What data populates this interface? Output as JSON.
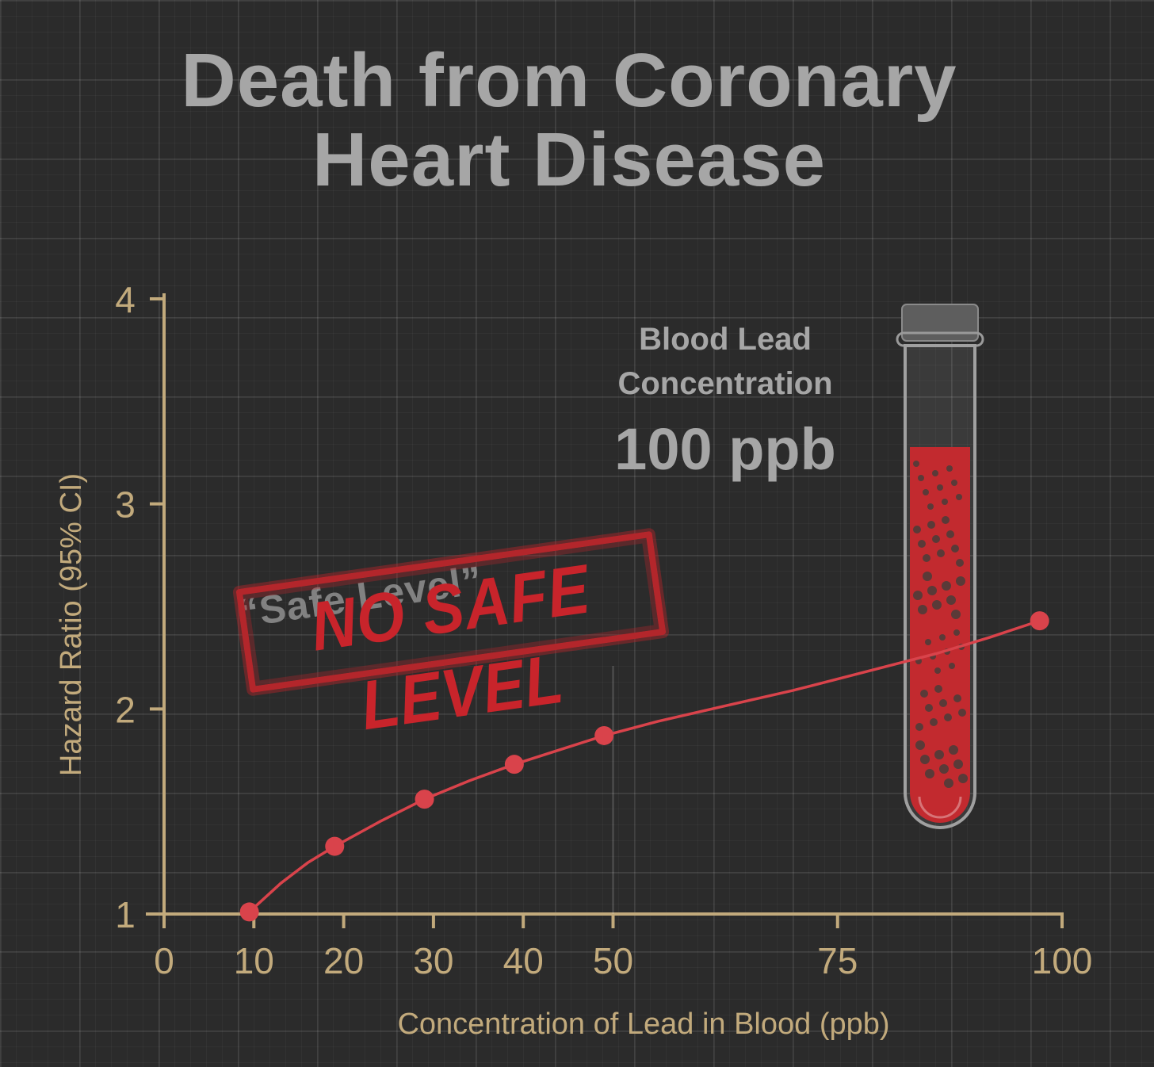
{
  "title_line1": "Death from Coronary",
  "title_line2": "Heart Disease",
  "blood_label_line1": "Blood Lead",
  "blood_label_line2": "Concentration",
  "blood_value": "100 ppb",
  "stamp_text": "NO SAFE LEVEL",
  "stamp_underlay_text": "“Safe Level”",
  "colors": {
    "accent": "#d9434b",
    "axis": "#c2aa7c",
    "title": "#a6a6a6"
  },
  "chart_data": {
    "type": "line",
    "title": "Death from Coronary Heart Disease",
    "xlabel": "Concentration of Lead in Blood (ppb)",
    "ylabel": "Hazard Ratio (95% CI)",
    "xlim": [
      0,
      100
    ],
    "ylim": [
      1,
      4
    ],
    "xticks": [
      0,
      10,
      20,
      30,
      40,
      50,
      75,
      100
    ],
    "xtick_labels": [
      "0",
      "10",
      "20",
      "30",
      "40",
      "50",
      "75",
      "100"
    ],
    "yticks": [
      1,
      2,
      3,
      4
    ],
    "ytick_labels": [
      "1",
      "2",
      "3",
      "4"
    ],
    "grid": true,
    "series": [
      {
        "x": [
          9.5,
          19,
          29,
          39,
          49,
          97.5
        ],
        "y": [
          1.01,
          1.33,
          1.56,
          1.73,
          1.87,
          2.43
        ]
      }
    ],
    "line_x": [
      9.5,
      13,
      16,
      19,
      24,
      29,
      34,
      39,
      44,
      49,
      55,
      62,
      70,
      78,
      86,
      92,
      97.5
    ],
    "line_y": [
      1.01,
      1.15,
      1.25,
      1.33,
      1.45,
      1.56,
      1.65,
      1.73,
      1.8,
      1.87,
      1.94,
      2.01,
      2.09,
      2.18,
      2.27,
      2.35,
      2.43
    ]
  }
}
